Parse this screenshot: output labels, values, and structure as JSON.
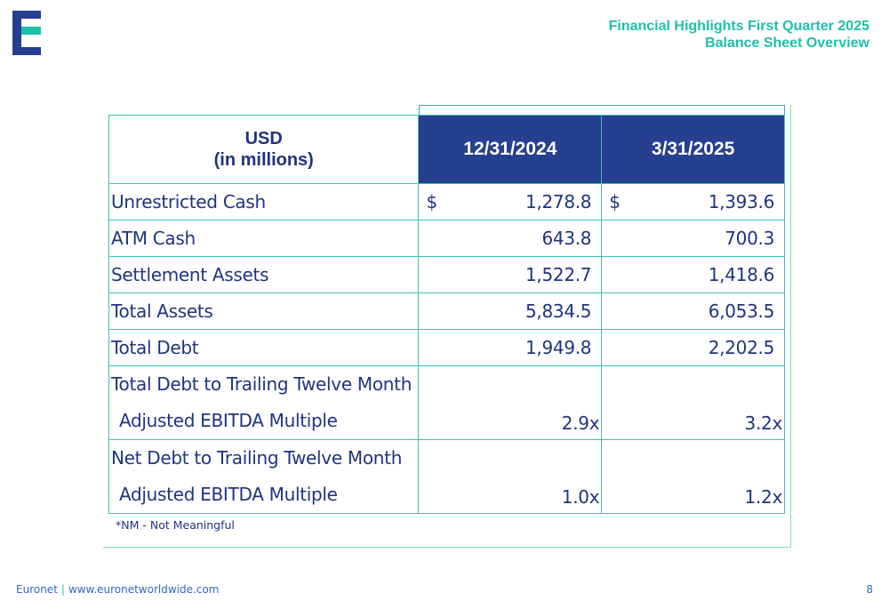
{
  "header": {
    "title_line1": "Financial Highlights First Quarter 2025",
    "title_line2": "Balance Sheet Overview"
  },
  "colors": {
    "navy": "#1f3480",
    "teal": "#1fbfa9",
    "header_fill": "#263f8f",
    "link_blue": "#3566c4"
  },
  "table": {
    "unit_line1": "USD",
    "unit_line2": "(in millions)",
    "columns": [
      "12/31/2024",
      "3/31/2025"
    ],
    "currency_symbol": "$",
    "rows": [
      {
        "label": "Unrestricted Cash",
        "values": [
          "1,278.8",
          "1,393.6"
        ]
      },
      {
        "label": "ATM Cash",
        "values": [
          "643.8",
          "700.3"
        ]
      },
      {
        "label": "Settlement Assets",
        "values": [
          "1,522.7",
          "1,418.6"
        ]
      },
      {
        "label": "Total Assets",
        "values": [
          "5,834.5",
          "6,053.5"
        ]
      },
      {
        "label": "Total Debt",
        "values": [
          "1,949.8",
          "2,202.5"
        ]
      }
    ],
    "multiples": [
      {
        "label_line1": "Total Debt to Trailing Twelve Month",
        "label_line2": "Adjusted EBITDA Multiple",
        "values": [
          "2.9x",
          "3.2x"
        ]
      },
      {
        "label_line1": "Net Debt to Trailing Twelve Month",
        "label_line2": "Adjusted EBITDA Multiple",
        "values": [
          "1.0x",
          "1.2x"
        ]
      }
    ]
  },
  "note": "*NM - Not Meaningful",
  "footer": {
    "company": "Euronet",
    "separator": "|",
    "website": "www.euronetworldwide.com",
    "page_number": "8"
  },
  "logo": {
    "icon": "euronet-logo-icon"
  }
}
